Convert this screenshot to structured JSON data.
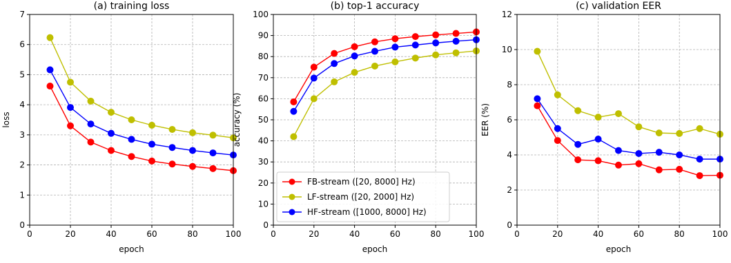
{
  "chart_data": [
    {
      "type": "line",
      "title": "(a) training loss",
      "xlabel": "epoch",
      "ylabel": "loss",
      "xlim": [
        0,
        100
      ],
      "ylim": [
        0,
        7
      ],
      "xticks": [
        0,
        20,
        40,
        60,
        80,
        100
      ],
      "yticks": [
        0,
        1,
        2,
        3,
        4,
        5,
        6,
        7
      ],
      "grid": true,
      "x": [
        10,
        20,
        30,
        40,
        50,
        60,
        70,
        80,
        90,
        100
      ],
      "series": [
        {
          "name": "FB-stream ([20, 8000] Hz)",
          "color": "#ff0000",
          "values": [
            4.62,
            3.3,
            2.76,
            2.48,
            2.28,
            2.13,
            2.03,
            1.95,
            1.88,
            1.81
          ]
        },
        {
          "name": "LF-stream ([20, 2000] Hz)",
          "color": "#bfbf00",
          "values": [
            6.23,
            4.75,
            4.12,
            3.75,
            3.5,
            3.32,
            3.18,
            3.07,
            2.99,
            2.9
          ]
        },
        {
          "name": "HF-stream ([1000, 8000] Hz)",
          "color": "#0000ff",
          "values": [
            5.16,
            3.91,
            3.36,
            3.05,
            2.85,
            2.69,
            2.58,
            2.48,
            2.4,
            2.33
          ]
        }
      ]
    },
    {
      "type": "line",
      "title": "(b) top-1 accuracy",
      "xlabel": "epoch",
      "ylabel": "accuracy (%)",
      "xlim": [
        0,
        100
      ],
      "ylim": [
        0,
        100
      ],
      "xticks": [
        0,
        20,
        40,
        60,
        80,
        100
      ],
      "yticks": [
        0,
        10,
        20,
        30,
        40,
        50,
        60,
        70,
        80,
        90,
        100
      ],
      "grid": true,
      "legend": "lower-left",
      "x": [
        10,
        20,
        30,
        40,
        50,
        60,
        70,
        80,
        90,
        100
      ],
      "series": [
        {
          "name": "FB-stream ([20, 8000] Hz)",
          "color": "#ff0000",
          "values": [
            58.5,
            75,
            81.5,
            84.7,
            87,
            88.5,
            89.5,
            90.3,
            91,
            91.7
          ]
        },
        {
          "name": "LF-stream ([20, 2000] Hz)",
          "color": "#bfbf00",
          "values": [
            42,
            60,
            68,
            72.5,
            75.5,
            77.5,
            79.3,
            80.8,
            81.8,
            82.7
          ]
        },
        {
          "name": "HF-stream ([1000, 8000] Hz)",
          "color": "#0000ff",
          "values": [
            54,
            69.8,
            76.7,
            80.3,
            82.5,
            84.5,
            85.5,
            86.5,
            87.3,
            88
          ]
        }
      ]
    },
    {
      "type": "line",
      "title": "(c) validation EER",
      "xlabel": "epoch",
      "ylabel": "EER (%)",
      "xlim": [
        0,
        100
      ],
      "ylim": [
        0,
        12
      ],
      "xticks": [
        0,
        20,
        40,
        60,
        80,
        100
      ],
      "yticks": [
        0,
        2,
        4,
        6,
        8,
        10,
        12
      ],
      "grid": true,
      "x": [
        10,
        20,
        30,
        40,
        50,
        60,
        70,
        80,
        90,
        100
      ],
      "series": [
        {
          "name": "FB-stream ([20, 8000] Hz)",
          "color": "#ff0000",
          "values": [
            6.8,
            4.82,
            3.72,
            3.67,
            3.42,
            3.5,
            3.15,
            3.18,
            2.82,
            2.84
          ]
        },
        {
          "name": "LF-stream ([20, 2000] Hz)",
          "color": "#bfbf00",
          "values": [
            9.9,
            7.42,
            6.52,
            6.15,
            6.35,
            5.6,
            5.25,
            5.22,
            5.5,
            5.18
          ]
        },
        {
          "name": "HF-stream ([1000, 8000] Hz)",
          "color": "#0000ff",
          "values": [
            7.2,
            5.5,
            4.6,
            4.9,
            4.25,
            4.08,
            4.15,
            4.0,
            3.76,
            3.76
          ]
        }
      ]
    }
  ]
}
